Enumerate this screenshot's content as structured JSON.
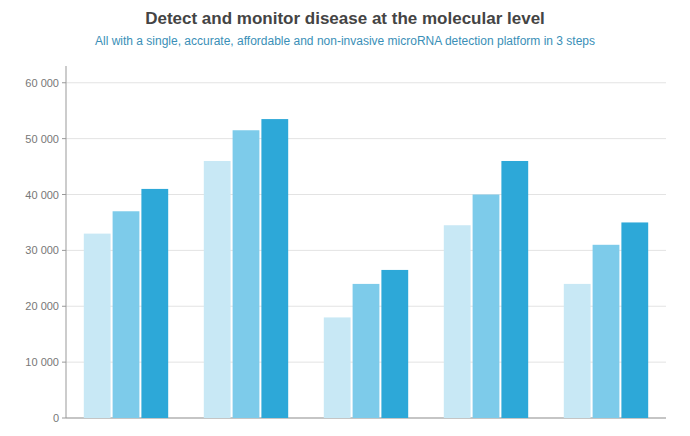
{
  "chart_data": {
    "type": "bar",
    "title": "Detect and monitor disease at the molecular level",
    "subtitle": "All with a single, accurate, affordable and non-invasive microRNA detection platform in 3 steps",
    "categories": [
      null,
      null,
      null,
      null,
      null
    ],
    "series": [
      {
        "color": "#c8e8f5",
        "values": [
          33000,
          46000,
          18000,
          34500,
          24000
        ]
      },
      {
        "color": "#7dcbea",
        "values": [
          37000,
          51500,
          24000,
          40000,
          31000
        ]
      },
      {
        "color": "#2da8d8",
        "values": [
          41000,
          53500,
          26500,
          46000,
          35000
        ]
      }
    ],
    "ylim": [
      0,
      63000
    ],
    "yticks": [
      0,
      {
        "value": 10000,
        "label": "10 000"
      },
      {
        "value": 20000,
        "label": "20 000"
      },
      {
        "value": 30000,
        "label": "30 000"
      },
      {
        "value": 40000,
        "label": "40 000"
      },
      {
        "value": 50000,
        "label": "50 000"
      },
      {
        "value": 60000,
        "label": "60 000"
      }
    ],
    "grid": true,
    "tick_labels": "y"
  }
}
